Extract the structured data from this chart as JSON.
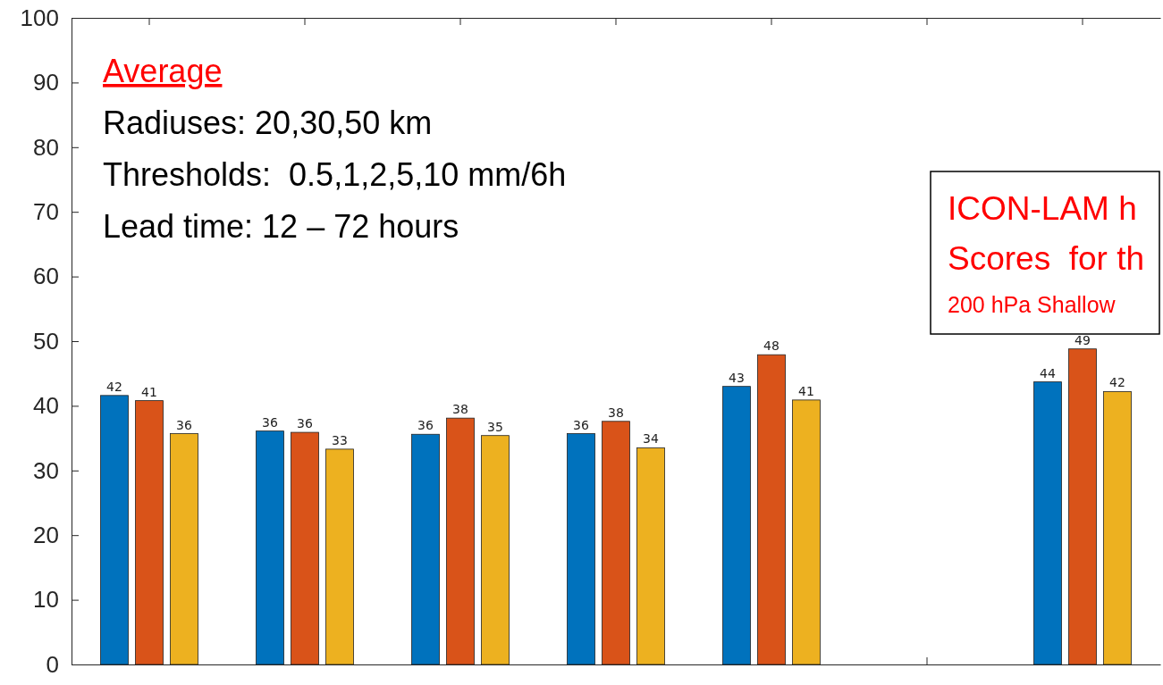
{
  "chart_data": {
    "type": "bar",
    "categories": [
      null,
      null,
      null,
      null,
      null,
      null,
      null
    ],
    "series": [
      {
        "color": "#0072bd",
        "values": [
          41.6,
          36.1,
          35.6,
          35.7,
          43.0,
          null,
          43.7
        ],
        "value_labels": [
          "42",
          "36",
          "36",
          "36",
          "43",
          null,
          "44"
        ]
      },
      {
        "color": "#d95319",
        "values": [
          40.8,
          35.9,
          38.1,
          37.6,
          47.9,
          null,
          48.8
        ],
        "value_labels": [
          "41",
          "36",
          "38",
          "38",
          "48",
          null,
          "49"
        ]
      },
      {
        "color": "#edb120",
        "values": [
          35.7,
          33.3,
          35.4,
          33.5,
          40.9,
          null,
          42.2
        ],
        "value_labels": [
          "36",
          "33",
          "35",
          "34",
          "41",
          null,
          "42"
        ]
      }
    ],
    "ylim": [
      0,
      100
    ],
    "yticks": [
      0,
      10,
      20,
      30,
      40,
      50,
      60,
      70,
      80,
      90,
      100
    ],
    "grid": false,
    "legend": false,
    "annotations": [
      "Average",
      "Radiuses: 20,30,50 km",
      "Thresholds:  0.5,1,2,5,10 mm/6h",
      "Lead time: 12 – 72 hours",
      "ICON-LAM h",
      "Scores  for th",
      "200 hPa Shallow"
    ]
  }
}
